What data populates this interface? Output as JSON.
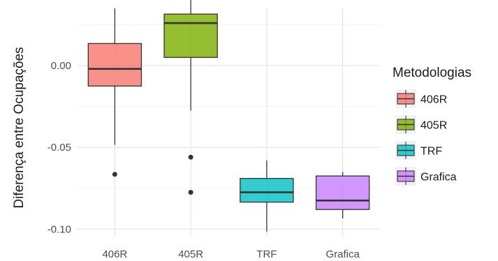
{
  "chart_data": {
    "type": "boxplot",
    "title": "",
    "xlabel": "",
    "ylabel": "Diferença entre Ocupações",
    "ylim": [
      -0.105,
      0.035
    ],
    "yticks": [
      -0.1,
      -0.05,
      0.0
    ],
    "ytick_labels": [
      "-0.10",
      "-0.05",
      "0.00"
    ],
    "grid": true,
    "legend": {
      "title": "Metodologias",
      "placement": "right"
    },
    "categories": [
      "406R",
      "405R",
      "TRF",
      "Grafica"
    ],
    "series": [
      {
        "name": "406R",
        "color": "#F8766D",
        "whisker_low": -0.0485,
        "q1": -0.0125,
        "median": -0.002,
        "q3": 0.0135,
        "whisker_high": 0.035,
        "outliers": [
          -0.0665
        ]
      },
      {
        "name": "405R",
        "color": "#7CAE00",
        "whisker_low": -0.0275,
        "q1": 0.005,
        "median": 0.026,
        "q3": 0.0315,
        "whisker_high": 0.0415,
        "outliers": [
          -0.056,
          -0.0775
        ]
      },
      {
        "name": "TRF",
        "color": "#00BFC4",
        "whisker_low": -0.1015,
        "q1": -0.0835,
        "median": -0.0775,
        "q3": -0.069,
        "whisker_high": -0.058,
        "outliers": []
      },
      {
        "name": "Grafica",
        "color": "#C77CFF",
        "whisker_low": -0.0935,
        "q1": -0.088,
        "median": -0.0825,
        "q3": -0.0675,
        "whisker_high": -0.065,
        "outliers": []
      }
    ]
  }
}
